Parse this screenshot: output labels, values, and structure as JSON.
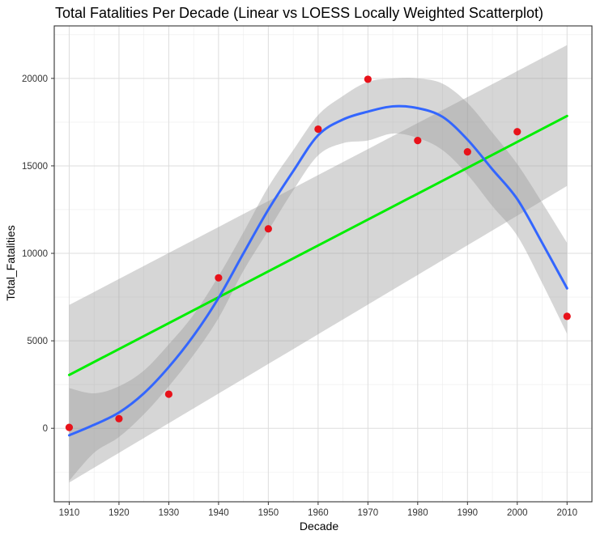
{
  "chart_data": {
    "type": "scatter",
    "title": "Total Fatalities Per Decade (Linear vs LOESS Locally Weighted Scatterplot)",
    "xlabel": "Decade",
    "ylabel": "Total_Fatalities",
    "x_ticks": [
      1910,
      1920,
      1930,
      1940,
      1950,
      1960,
      1970,
      1980,
      1990,
      2000,
      2010
    ],
    "y_ticks": [
      0,
      5000,
      10000,
      15000,
      20000
    ],
    "xlim": [
      1907,
      2015
    ],
    "ylim": [
      -4200,
      23000
    ],
    "grid": true,
    "legend": "none",
    "colors": {
      "points": "#e8121a",
      "linear": "#00ee00",
      "loess": "#3366ff",
      "ribbon": "#999999",
      "panel_border": "#333333",
      "grid": "#dddddd"
    },
    "points": {
      "x": [
        1910,
        1920,
        1930,
        1940,
        1950,
        1960,
        1970,
        1980,
        1990,
        2000,
        2010
      ],
      "y": [
        50,
        550,
        1950,
        8600,
        11400,
        17100,
        19950,
        16450,
        15800,
        16950,
        6400
      ]
    },
    "series": [
      {
        "method": "linear",
        "x": [
          1910,
          2010
        ],
        "y": [
          3050,
          17850
        ],
        "ci_lower": [
          -3100,
          13850
        ],
        "ci_upper": [
          7050,
          21900
        ]
      },
      {
        "method": "loess",
        "x": [
          1910,
          1915,
          1920,
          1925,
          1930,
          1935,
          1940,
          1945,
          1950,
          1955,
          1960,
          1965,
          1970,
          1975,
          1980,
          1985,
          1990,
          1995,
          2000,
          2005,
          2010
        ],
        "y": [
          -400,
          200,
          900,
          2000,
          3500,
          5300,
          7450,
          10000,
          12500,
          14700,
          16750,
          17650,
          18100,
          18400,
          18300,
          17800,
          16500,
          14800,
          13100,
          10600,
          8000
        ],
        "ci_lower": [
          -3000,
          -1400,
          -500,
          800,
          2400,
          4200,
          6300,
          9000,
          11300,
          13600,
          15600,
          16300,
          16450,
          16850,
          16600,
          15900,
          14500,
          12700,
          11000,
          8300,
          5400
        ],
        "ci_upper": [
          2300,
          2000,
          2400,
          3300,
          4800,
          6500,
          8700,
          11200,
          13800,
          15900,
          17900,
          19000,
          19800,
          20000,
          20000,
          19700,
          18600,
          16900,
          15100,
          12900,
          10600
        ]
      }
    ]
  }
}
